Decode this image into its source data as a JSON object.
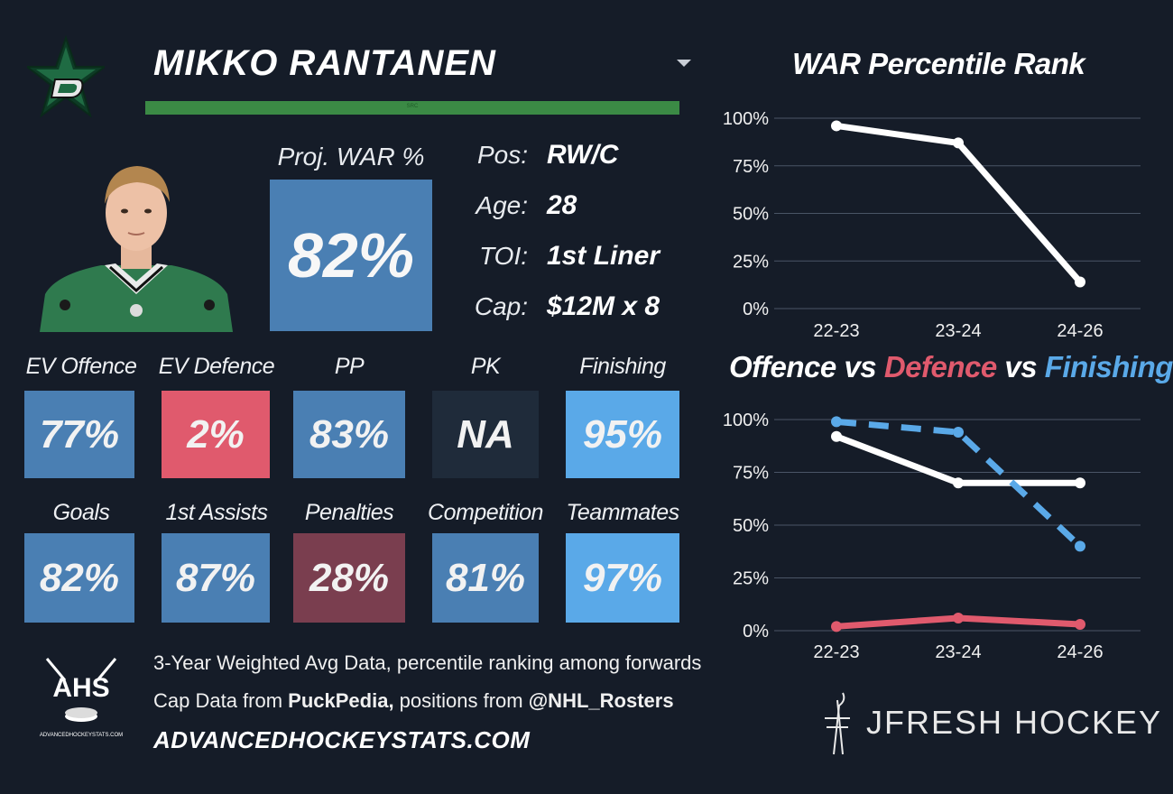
{
  "player": {
    "name": "MIKKO RANTANEN",
    "name_bar_text": "SRC",
    "proj_war_label": "Proj. WAR %",
    "proj_war_value": "82%"
  },
  "info": [
    {
      "label": "Pos:",
      "value": "RW/C"
    },
    {
      "label": "Age:",
      "value": "28"
    },
    {
      "label": "TOI:",
      "value": "1st Liner"
    },
    {
      "label": "Cap:",
      "value": "$12M x 8"
    }
  ],
  "tiles": [
    {
      "label": "EV Offence",
      "value": "77%",
      "color": "#4a7fb3"
    },
    {
      "label": "EV Defence",
      "value": "2%",
      "color": "#e05a6d"
    },
    {
      "label": "PP",
      "value": "83%",
      "color": "#4a7fb3"
    },
    {
      "label": "PK",
      "value": "NA",
      "color": "#1f2b3a"
    },
    {
      "label": "Finishing",
      "value": "95%",
      "color": "#5aa9e8"
    },
    {
      "label": "Goals",
      "value": "82%",
      "color": "#4a7fb3"
    },
    {
      "label": "1st Assists",
      "value": "87%",
      "color": "#4a7fb3"
    },
    {
      "label": "Penalties",
      "value": "28%",
      "color": "#7a3e4f"
    },
    {
      "label": "Competition",
      "value": "81%",
      "color": "#4a7fb3"
    },
    {
      "label": "Teammates",
      "value": "97%",
      "color": "#5aa9e8"
    }
  ],
  "footer": {
    "line1": "3-Year Weighted Avg Data, percentile ranking among forwards",
    "line2_prefix": "Cap Data from ",
    "line2_source": "PuckPedia,",
    "line2_middle": " positions from ",
    "line2_handle": "@NHL_Rosters",
    "url": "ADVANCEDHOCKEYSTATS.COM",
    "ahs_logo_text": "AHS",
    "ahs_logo_sub": "ADVANCEDHOCKEYSTATS.COM",
    "brand": "JFRESH HOCKEY"
  },
  "chart_data": [
    {
      "type": "line",
      "title": "WAR Percentile Rank",
      "categories": [
        "22-23",
        "23-24",
        "24-26"
      ],
      "y_ticks": [
        "0%",
        "25%",
        "50%",
        "75%",
        "100%"
      ],
      "ylim": [
        0,
        100
      ],
      "grid": true,
      "series": [
        {
          "values": [
            96,
            87,
            14
          ],
          "color": "#ffffff",
          "dashed": false
        }
      ]
    },
    {
      "type": "line",
      "title_parts": [
        {
          "text": "Offence",
          "color": "#ffffff"
        },
        {
          "text": " vs ",
          "color": "#ffffff"
        },
        {
          "text": "Defence",
          "color": "#e05a6d"
        },
        {
          "text": " vs ",
          "color": "#ffffff"
        },
        {
          "text": "Finishing",
          "color": "#5aa9e8"
        }
      ],
      "categories": [
        "22-23",
        "23-24",
        "24-26"
      ],
      "y_ticks": [
        "0%",
        "25%",
        "50%",
        "75%",
        "100%"
      ],
      "ylim": [
        0,
        100
      ],
      "grid": true,
      "series": [
        {
          "name": "Offence",
          "values": [
            92,
            70,
            70
          ],
          "color": "#ffffff",
          "dashed": false
        },
        {
          "name": "Defence",
          "values": [
            2,
            6,
            3
          ],
          "color": "#e05a6d",
          "dashed": false
        },
        {
          "name": "Finishing",
          "values": [
            99,
            94,
            40
          ],
          "color": "#5aa9e8",
          "dashed": true
        }
      ]
    }
  ]
}
